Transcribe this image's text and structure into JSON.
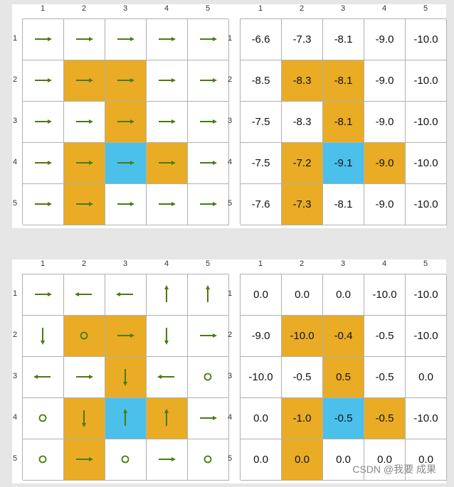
{
  "colors": {
    "forbidden": "#e9ac24",
    "target": "#4bc0ea",
    "normal": "#ffffff",
    "arrow": "#4c7a10"
  },
  "axis_labels": [
    "1",
    "2",
    "3",
    "4",
    "5"
  ],
  "grid_types": [
    [
      "normal",
      "normal",
      "normal",
      "normal",
      "normal"
    ],
    [
      "normal",
      "forbidden",
      "forbidden",
      "normal",
      "normal"
    ],
    [
      "normal",
      "normal",
      "forbidden",
      "normal",
      "normal"
    ],
    [
      "normal",
      "forbidden",
      "target",
      "forbidden",
      "normal"
    ],
    [
      "normal",
      "forbidden",
      "normal",
      "normal",
      "normal"
    ]
  ],
  "panels": [
    {
      "policy": [
        [
          "right",
          "right",
          "right",
          "right",
          "right"
        ],
        [
          "right",
          "right",
          "right",
          "right",
          "right"
        ],
        [
          "right",
          "right",
          "right",
          "right",
          "right"
        ],
        [
          "right",
          "right",
          "right",
          "right",
          "right"
        ],
        [
          "right",
          "right",
          "right",
          "right",
          "right"
        ]
      ],
      "values": [
        [
          "-6.6",
          "-7.3",
          "-8.1",
          "-9.0",
          "-10.0"
        ],
        [
          "-8.5",
          "-8.3",
          "-8.1",
          "-9.0",
          "-10.0"
        ],
        [
          "-7.5",
          "-8.3",
          "-8.1",
          "-9.0",
          "-10.0"
        ],
        [
          "-7.5",
          "-7.2",
          "-9.1",
          "-9.0",
          "-10.0"
        ],
        [
          "-7.6",
          "-7.3",
          "-8.1",
          "-9.0",
          "-10.0"
        ]
      ]
    },
    {
      "policy": [
        [
          "right",
          "left",
          "left",
          "up",
          "up"
        ],
        [
          "down",
          "stay",
          "right",
          "down",
          "right"
        ],
        [
          "left",
          "right",
          "down",
          "left",
          "stay"
        ],
        [
          "stay",
          "down",
          "up",
          "up",
          "right"
        ],
        [
          "stay",
          "right",
          "stay",
          "right",
          "stay"
        ]
      ],
      "values": [
        [
          "0.0",
          "0.0",
          "0.0",
          "-10.0",
          "-10.0"
        ],
        [
          "-9.0",
          "-10.0",
          "-0.4",
          "-0.5",
          "-10.0"
        ],
        [
          "-10.0",
          "-0.5",
          "0.5",
          "-0.5",
          "0.0"
        ],
        [
          "0.0",
          "-1.0",
          "-0.5",
          "-0.5",
          "-10.0"
        ],
        [
          "0.0",
          "0.0",
          "0.0",
          "0.0",
          "0.0"
        ]
      ]
    }
  ],
  "watermark": "CSDN @我要 成果"
}
